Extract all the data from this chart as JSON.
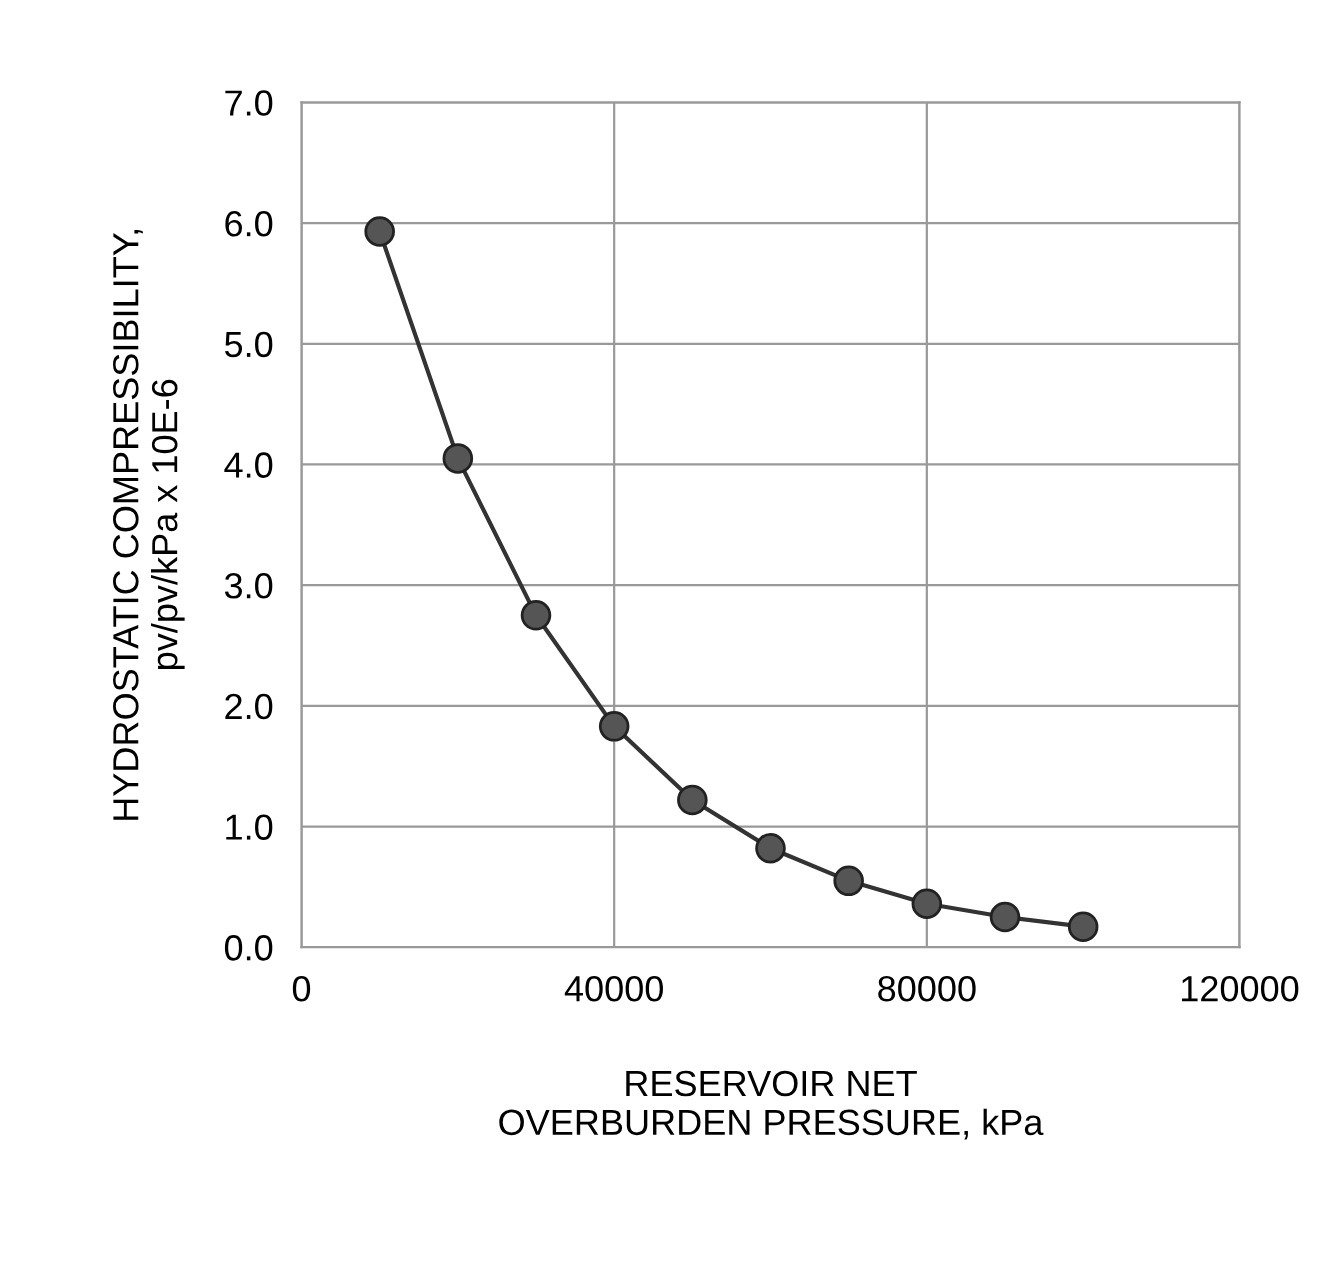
{
  "chart_data": {
    "type": "line",
    "xlabel": "RESERVOIR NET\nOVERBURDEN PRESSURE, kPa",
    "ylabel": "HYDROSTATIC COMPRESSIBILITY,\npv/pv/kPa x 10E-6",
    "x": [
      10000,
      20000,
      30000,
      40000,
      50000,
      60000,
      70000,
      80000,
      90000,
      100000
    ],
    "series": [
      {
        "color": "#333333",
        "values": [
          5.93,
          4.05,
          2.75,
          1.83,
          1.22,
          0.82,
          0.55,
          0.36,
          0.25,
          0.17
        ]
      }
    ],
    "xlim": [
      0,
      120000
    ],
    "xticks": [
      0,
      40000,
      80000,
      120000
    ],
    "ylim": [
      0,
      7
    ],
    "yticks": [
      {
        "value": 0,
        "label": "0.0"
      },
      {
        "value": 1,
        "label": "1.0"
      },
      {
        "value": 2,
        "label": "2.0"
      },
      {
        "value": 3,
        "label": "3.0"
      },
      {
        "value": 4,
        "label": "4.0"
      },
      {
        "value": 5,
        "label": "5.0"
      },
      {
        "value": 6,
        "label": "6.0"
      },
      {
        "value": 7,
        "label": "7.0"
      }
    ],
    "grid": true,
    "marker": "circle",
    "line_style": "solid",
    "legend": false
  }
}
